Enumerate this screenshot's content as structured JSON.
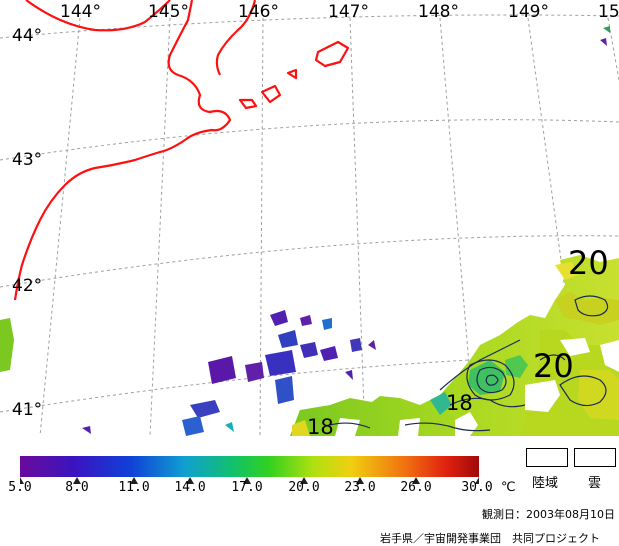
{
  "map": {
    "longitude_labels": [
      "144°",
      "145°",
      "146°",
      "147°",
      "148°",
      "149°",
      "15"
    ],
    "latitude_labels": [
      "44°",
      "43°",
      "42°",
      "41°"
    ],
    "contour_labels": [
      "20",
      "20",
      "18",
      "18"
    ],
    "colors": {
      "coastline": "#ff1010",
      "graticule": "#a0a0a0",
      "land": "#ffffff",
      "cloud": "#ffffff",
      "contour": "#1a2a50"
    }
  },
  "colorbar": {
    "tick_labels": [
      "5.0",
      "8.0",
      "11.0",
      "14.0",
      "17.0",
      "20.0",
      "23.0",
      "26.0",
      "30.0"
    ],
    "unit": "℃",
    "stops": [
      "#6a0a9c",
      "#2a1ad0",
      "#0a60e0",
      "#10b8c8",
      "#10d040",
      "#a0e010",
      "#f0d010",
      "#f07010",
      "#e02010",
      "#b00a0a"
    ]
  },
  "legend": {
    "land_label": "陸域",
    "cloud_label": "雲"
  },
  "footer": {
    "observation_date": "観測日：2003年08月10日",
    "credit": "岩手県／宇宙開発事業団　共同プロジェクト"
  }
}
